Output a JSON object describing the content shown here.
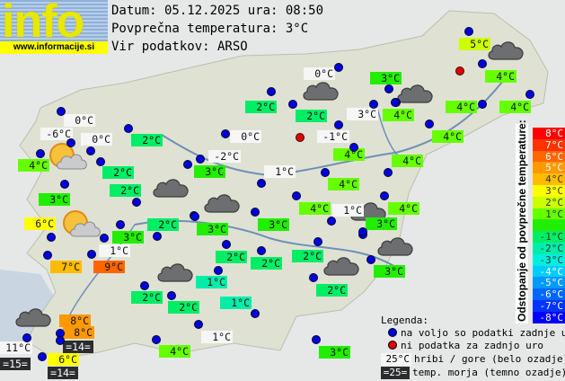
{
  "header": {
    "logo_word": "info",
    "logo_url": "www.informacije.si",
    "date_line": "Datum: 05.12.2025 ura: 08:50",
    "avg_line": "Povprečna temperatura: 3°C",
    "source_line": "Vir podatkov: ARSO"
  },
  "average_temperature": 3,
  "map_labels": [
    {
      "text": "5°C",
      "kind": "color",
      "value": 5
    },
    {
      "text": "4°C",
      "kind": "color",
      "value": 4
    },
    {
      "text": "3°C",
      "kind": "color",
      "value": 3
    },
    {
      "text": "0°C",
      "kind": "hill",
      "value": 0
    },
    {
      "text": "2°C",
      "kind": "color",
      "value": 2
    },
    {
      "text": "2°C",
      "kind": "color",
      "value": 2
    },
    {
      "text": "3°C",
      "kind": "hill",
      "value": 3
    },
    {
      "text": "4°C",
      "kind": "color",
      "value": 4
    },
    {
      "text": "4°C",
      "kind": "color",
      "value": 4
    },
    {
      "text": "4°C",
      "kind": "color",
      "value": 4
    },
    {
      "text": "4°C",
      "kind": "color",
      "value": 4
    },
    {
      "text": "-1°C",
      "kind": "hill",
      "value": -1
    },
    {
      "text": "0°C",
      "kind": "hill",
      "value": 0
    },
    {
      "text": "-6°C",
      "kind": "hill",
      "value": -6
    },
    {
      "text": "0°C",
      "kind": "hill",
      "value": 0
    },
    {
      "text": "2°C",
      "kind": "color",
      "value": 2
    },
    {
      "text": "0°C",
      "kind": "hill",
      "value": 0
    },
    {
      "text": "4°C",
      "kind": "color",
      "value": 4
    },
    {
      "text": "-2°C",
      "kind": "hill",
      "value": -2
    },
    {
      "text": "2°C",
      "kind": "color",
      "value": 2
    },
    {
      "text": "3°C",
      "kind": "color",
      "value": 3
    },
    {
      "text": "1°C",
      "kind": "hill",
      "value": 1
    },
    {
      "text": "4°C",
      "kind": "color",
      "value": 4
    },
    {
      "text": "4°C",
      "kind": "color",
      "value": 4
    },
    {
      "text": "2°C",
      "kind": "color",
      "value": 2
    },
    {
      "text": "4°C",
      "kind": "color",
      "value": 4
    },
    {
      "text": "3°C",
      "kind": "color",
      "value": 3
    },
    {
      "text": "4°C",
      "kind": "color",
      "value": 4
    },
    {
      "text": "1°C",
      "kind": "hill",
      "value": 1
    },
    {
      "text": "4°C",
      "kind": "color",
      "value": 4
    },
    {
      "text": "6°C",
      "kind": "color",
      "value": 6
    },
    {
      "text": "2°C",
      "kind": "color",
      "value": 2
    },
    {
      "text": "3°C",
      "kind": "color",
      "value": 3
    },
    {
      "text": "3°C",
      "kind": "color",
      "value": 3
    },
    {
      "text": "3°C",
      "kind": "color",
      "value": 3
    },
    {
      "text": "3°C",
      "kind": "color",
      "value": 3
    },
    {
      "text": "1°C",
      "kind": "hill",
      "value": 1
    },
    {
      "text": "7°C",
      "kind": "color",
      "value": 7
    },
    {
      "text": "9°C",
      "kind": "color",
      "value": 9
    },
    {
      "text": "2°C",
      "kind": "color",
      "value": 2
    },
    {
      "text": "2°C",
      "kind": "color",
      "value": 2
    },
    {
      "text": "2°C",
      "kind": "color",
      "value": 2
    },
    {
      "text": "3°C",
      "kind": "color",
      "value": 3
    },
    {
      "text": "1°C",
      "kind": "color",
      "value": 1
    },
    {
      "text": "2°C",
      "kind": "color",
      "value": 2
    },
    {
      "text": "2°C",
      "kind": "color",
      "value": 2
    },
    {
      "text": "1°C",
      "kind": "color",
      "value": 1
    },
    {
      "text": "2°C",
      "kind": "color",
      "value": 2
    },
    {
      "text": "8°C",
      "kind": "color",
      "value": 8
    },
    {
      "text": "8°C",
      "kind": "color",
      "value": 8
    },
    {
      "text": "=14=",
      "kind": "sea",
      "value": 14
    },
    {
      "text": "1°C",
      "kind": "hill",
      "value": 1
    },
    {
      "text": "11°C",
      "kind": "hill",
      "value": 11
    },
    {
      "text": "=15=",
      "kind": "sea",
      "value": 15
    },
    {
      "text": "6°C",
      "kind": "color",
      "value": 6
    },
    {
      "text": "=14=",
      "kind": "sea",
      "value": 14
    },
    {
      "text": "4°C",
      "kind": "color",
      "value": 4
    },
    {
      "text": "3°C",
      "kind": "color",
      "value": 3
    }
  ],
  "markers": [
    "ok",
    "nodata",
    "ok",
    "ok",
    "ok",
    "ok",
    "ok",
    "ok",
    "ok",
    "ok",
    "ok",
    "ok",
    "ok",
    "ok",
    "ok",
    "ok",
    "ok",
    "ok",
    "ok",
    "ok",
    "ok",
    "ok",
    "ok",
    "ok",
    "ok",
    "ok",
    "ok",
    "ok",
    "ok",
    "nodata",
    "ok",
    "ok",
    "ok",
    "ok",
    "ok",
    "ok",
    "ok",
    "ok",
    "ok",
    "ok",
    "ok",
    "ok",
    "ok",
    "ok",
    "ok",
    "ok",
    "ok",
    "ok",
    "ok",
    "ok",
    "ok",
    "ok",
    "ok",
    "ok",
    "ok",
    "ok",
    "ok",
    "ok",
    "ok",
    "ok"
  ],
  "weather_icons": [
    "partly-cloudy",
    "partly-cloudy",
    "cloudy",
    "cloudy",
    "cloudy",
    "cloudy",
    "cloudy",
    "cloudy",
    "cloudy",
    "cloudy",
    "cloudy",
    "cloudy"
  ],
  "deviation_scale": {
    "title": "Odstopanje od povprečne temperature:",
    "items": [
      {
        "label": "8°C",
        "dev": 8,
        "color": "#ff0000"
      },
      {
        "label": "7°C",
        "dev": 7,
        "color": "#ff3300"
      },
      {
        "label": "6°C",
        "dev": 6,
        "color": "#ff6600"
      },
      {
        "label": "5°C",
        "dev": 5,
        "color": "#ff9900"
      },
      {
        "label": "4°C",
        "dev": 4,
        "color": "#ffbb00"
      },
      {
        "label": "3°C",
        "dev": 3,
        "color": "#ffff00"
      },
      {
        "label": "2°C",
        "dev": 2,
        "color": "#ccff00"
      },
      {
        "label": "1°C",
        "dev": 1,
        "color": "#66ff00"
      },
      {
        "label": "",
        "dev": 0,
        "color": "#22ee00"
      },
      {
        "label": "-1°C",
        "dev": -1,
        "color": "#00ee66"
      },
      {
        "label": "-2°C",
        "dev": -2,
        "color": "#00eeaa"
      },
      {
        "label": "-3°C",
        "dev": -3,
        "color": "#00eedd"
      },
      {
        "label": "-4°C",
        "dev": -4,
        "color": "#00ccff"
      },
      {
        "label": "-5°C",
        "dev": -5,
        "color": "#0099ff"
      },
      {
        "label": "-6°C",
        "dev": -6,
        "color": "#0066ff"
      },
      {
        "label": "-7°C",
        "dev": -7,
        "color": "#0033ff"
      },
      {
        "label": "-8°C",
        "dev": -8,
        "color": "#0000ff"
      }
    ]
  },
  "legend": {
    "title": "Legenda:",
    "available": "na voljo so podatki zadnje ure",
    "no_data": "ni podatka za zadnjo uro",
    "hill_sample": "25°C",
    "hill_text": "hribi / gore (belo ozadje)",
    "sea_sample": "=25=",
    "sea_text": "temp. morja (temno ozadje)",
    "available_color": "#0000dd",
    "no_data_color": "#dd0000"
  }
}
